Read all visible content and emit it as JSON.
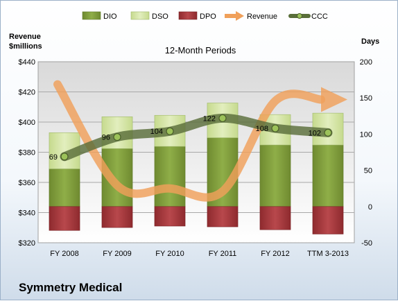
{
  "company": "Symmetry Medical",
  "chart_data": {
    "type": "bar",
    "title": "12-Month Periods",
    "left_axis_label": [
      "Revenue",
      "$millions"
    ],
    "right_axis_label": "Days",
    "categories": [
      "FY 2008",
      "FY 2009",
      "FY 2010",
      "FY 2011",
      "FY 2012",
      "TTM 3-2013"
    ],
    "left_ticks": [
      "$320",
      "$340",
      "$360",
      "$380",
      "$400",
      "$420",
      "$440"
    ],
    "left_ylim": [
      320,
      440
    ],
    "right_ticks": [
      "-50",
      "0",
      "50",
      "100",
      "150",
      "200"
    ],
    "right_ylim": [
      -50,
      200
    ],
    "grid": true,
    "legend_position": "top",
    "legend": [
      "DIO",
      "DSO",
      "DPO",
      "Revenue",
      "CCC"
    ],
    "series": [
      {
        "name": "DIO",
        "kind": "stacked-bar",
        "axis": "right",
        "values": [
          52,
          80,
          83,
          95,
          85,
          85
        ],
        "color": "#7f9b3c"
      },
      {
        "name": "DSO",
        "kind": "stacked-bar",
        "axis": "right",
        "values": [
          50,
          44,
          43,
          48,
          42,
          44
        ],
        "color": "#d3e3a4"
      },
      {
        "name": "DPO",
        "kind": "negative-bar",
        "axis": "right",
        "values": [
          -33,
          -29,
          -27,
          -28,
          -32,
          -38
        ],
        "color": "#a3363a"
      },
      {
        "name": "Revenue",
        "kind": "line",
        "axis": "left",
        "values": [
          425,
          358,
          356,
          354,
          414,
          414
        ],
        "color": "#f0a05a"
      },
      {
        "name": "CCC",
        "kind": "line",
        "axis": "right",
        "values": [
          69,
          96,
          104,
          122,
          108,
          102
        ],
        "labels": [
          "69",
          "96",
          "104",
          "122",
          "108",
          "102"
        ],
        "color": "#5a6e3a"
      }
    ]
  }
}
